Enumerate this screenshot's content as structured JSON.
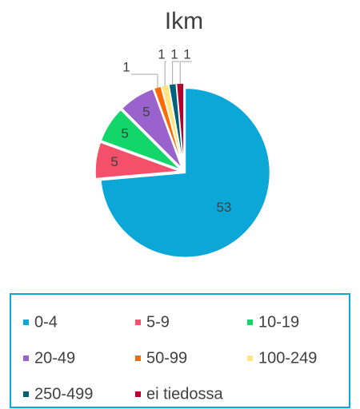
{
  "chart_data": {
    "type": "pie",
    "title": "Ikm",
    "categories": [
      "0-4",
      "5-9",
      "10-19",
      "20-49",
      "50-99",
      "100-249",
      "250-499",
      "ei tiedossa"
    ],
    "values": [
      53,
      5,
      5,
      5,
      1,
      1,
      1,
      1
    ],
    "colors": [
      "#0aa7d7",
      "#f4506c",
      "#12d66a",
      "#9a62cc",
      "#ff6a00",
      "#ffe680",
      "#00617a",
      "#b3002e"
    ],
    "legend": "bottom"
  }
}
